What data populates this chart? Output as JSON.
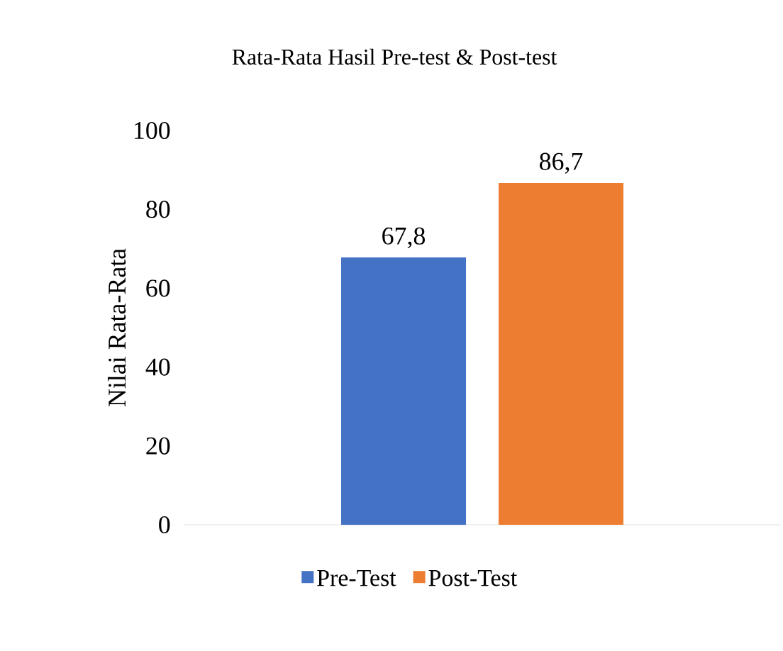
{
  "chart_data": {
    "type": "bar",
    "title": "Rata-Rata Hasil Pre-test & Post-test",
    "ylabel": "Nilai Rata-Rata",
    "categories": [
      null
    ],
    "series": [
      {
        "name": "Pre-Test",
        "color": "#4472c4",
        "values": [
          67.8
        ],
        "value_labels": [
          "67,8"
        ]
      },
      {
        "name": "Post-Test",
        "color": "#ed7d31",
        "values": [
          86.7
        ],
        "value_labels": [
          "86,7"
        ]
      }
    ],
    "ylim": [
      0,
      100
    ],
    "yticks": [
      0,
      20,
      40,
      60,
      80,
      100
    ],
    "legend": "bottom"
  }
}
